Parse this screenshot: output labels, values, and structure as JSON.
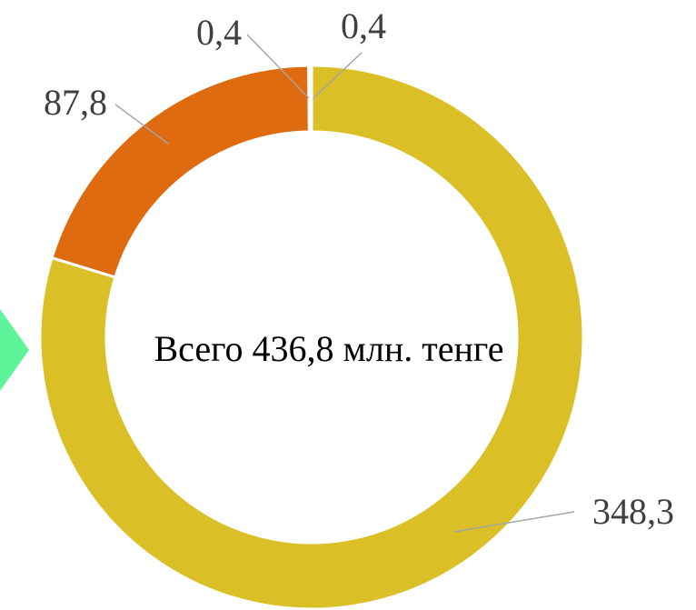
{
  "chart_data": {
    "type": "donut",
    "values": [
      348.3,
      87.8,
      0.4,
      0.4
    ],
    "value_labels": [
      "348,3",
      "87,8",
      "0,4",
      "0,4"
    ],
    "colors": [
      "#dbbf26",
      "#de6b10",
      "#c0504d",
      "#9e9e9e"
    ],
    "center_text": "Всего 436,8 млн. тенге"
  }
}
